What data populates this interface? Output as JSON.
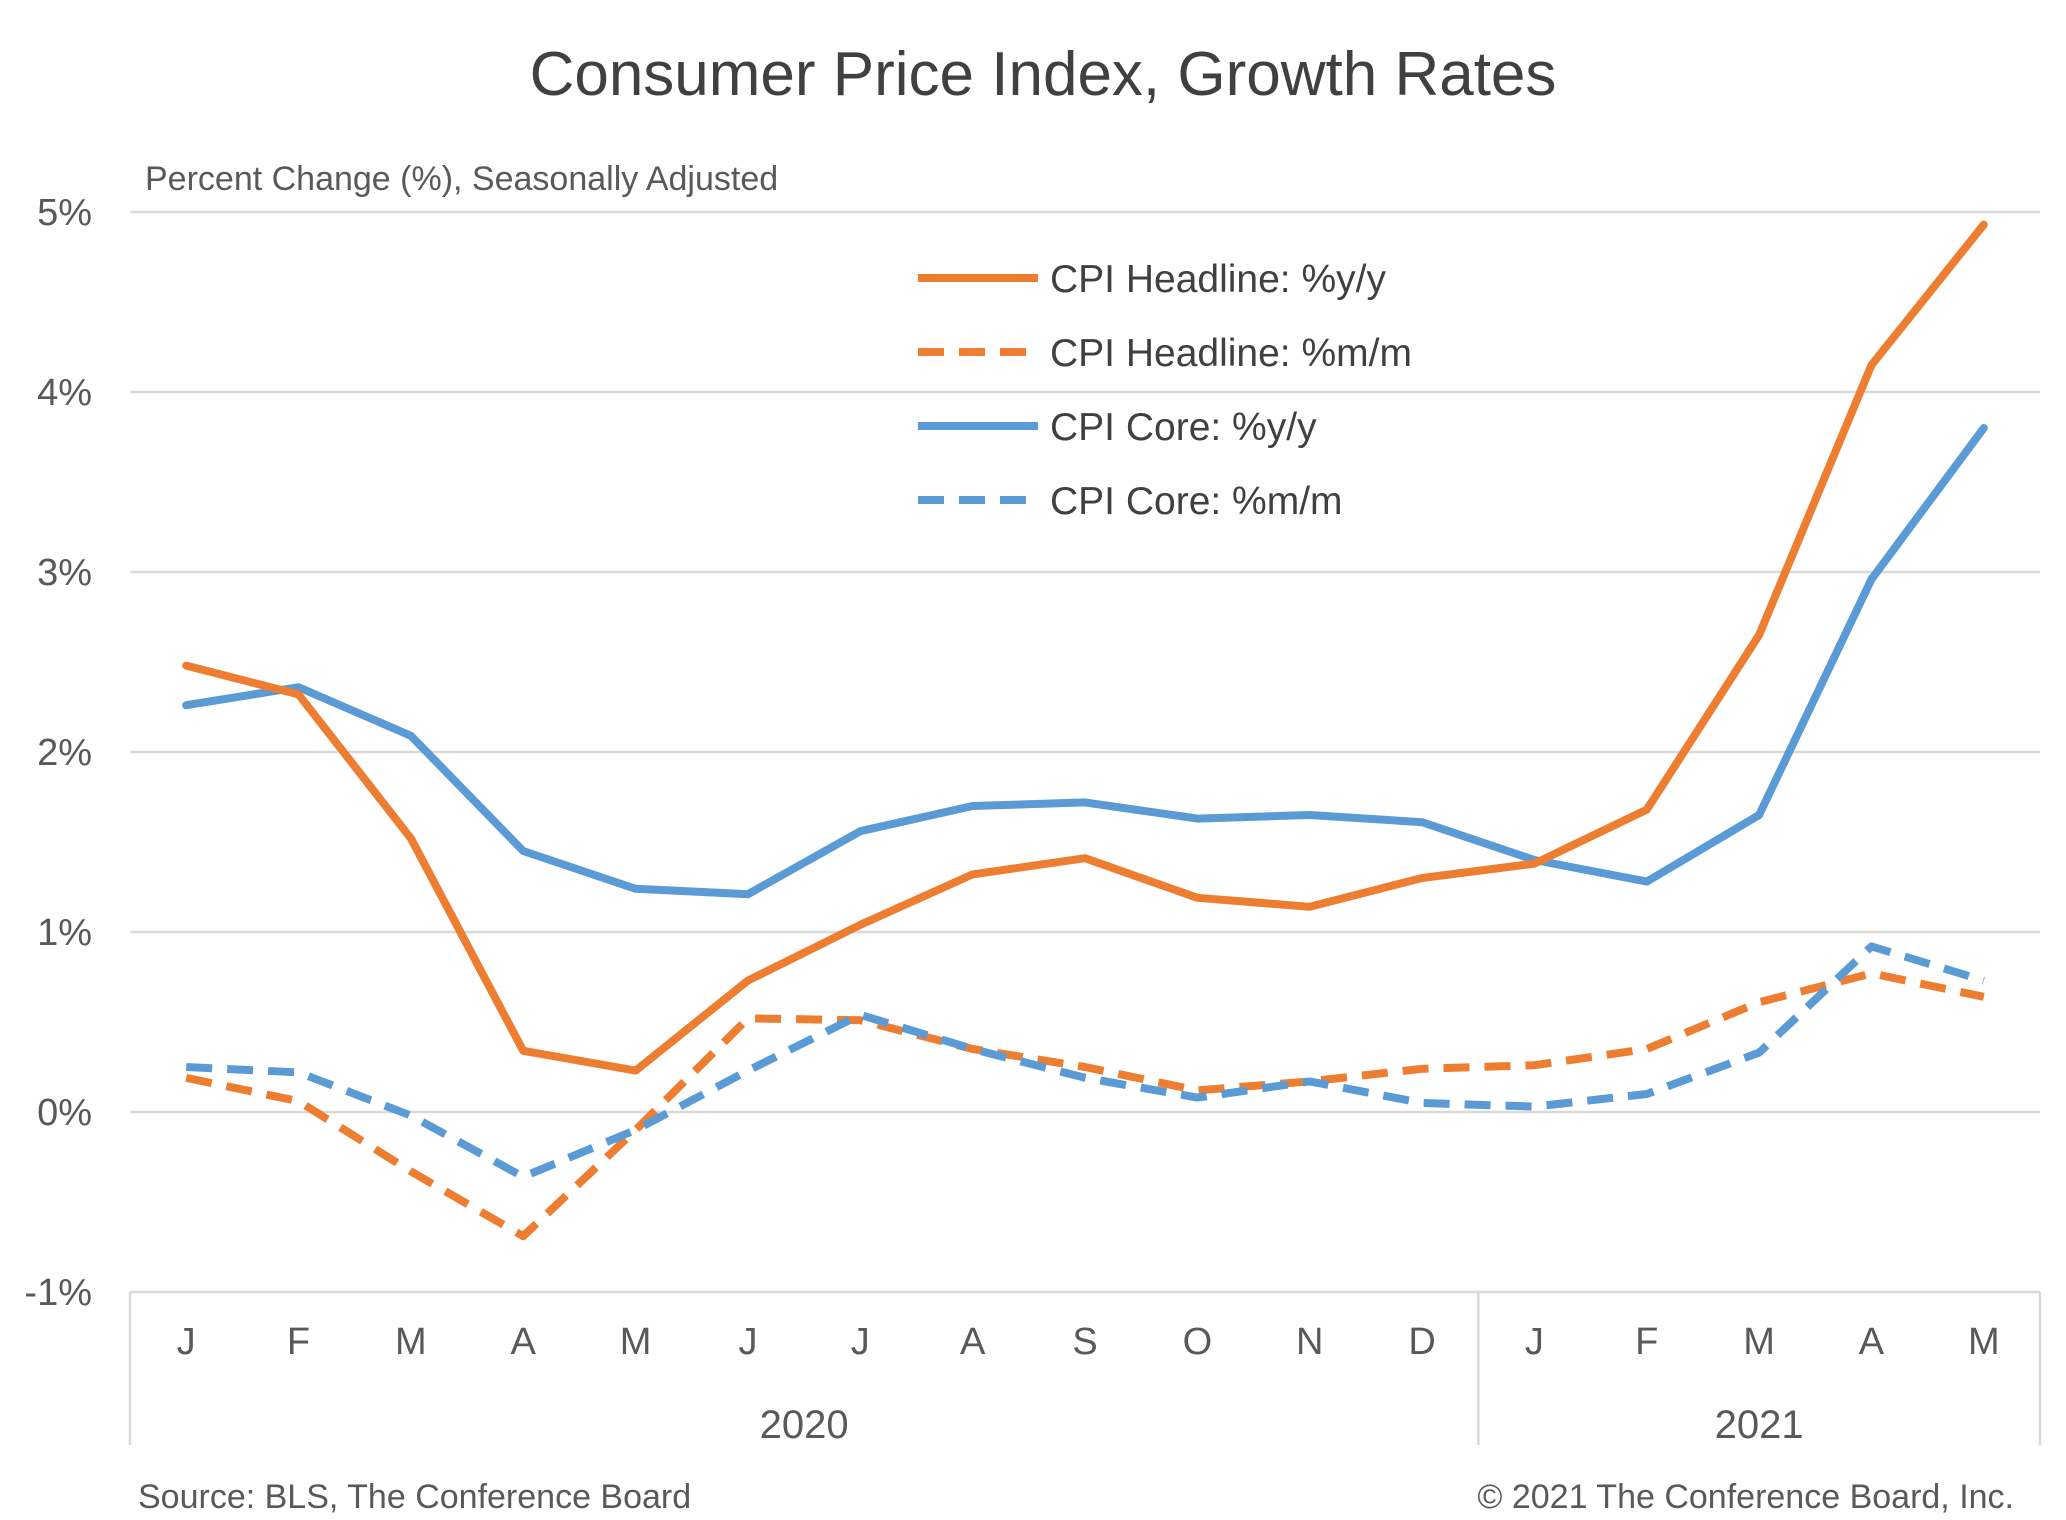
{
  "chart_data": {
    "type": "line",
    "title": "Consumer Price Index, Growth Rates",
    "subtitle": "Percent Change (%), Seasonally Adjusted",
    "categories": [
      "J",
      "F",
      "M",
      "A",
      "M",
      "J",
      "J",
      "A",
      "S",
      "O",
      "N",
      "D",
      "J",
      "F",
      "M",
      "A",
      "M"
    ],
    "year_groups": [
      {
        "label": "2020",
        "start": 0,
        "end": 11
      },
      {
        "label": "2021",
        "start": 12,
        "end": 16
      }
    ],
    "y_ticks": [
      {
        "value": 5,
        "label": "5%"
      },
      {
        "value": 4,
        "label": "4%"
      },
      {
        "value": 3,
        "label": "3%"
      },
      {
        "value": 2,
        "label": "2%"
      },
      {
        "value": 1,
        "label": "1%"
      },
      {
        "value": 0,
        "label": "0%"
      },
      {
        "value": -1,
        "label": "-1%"
      }
    ],
    "ylim": [
      -1,
      5
    ],
    "grid": true,
    "legend_position": "top-center",
    "series": [
      {
        "name": "CPI Headline:  %y/y",
        "color": "#ED7D31",
        "dash": false,
        "values": [
          2.48,
          2.32,
          1.52,
          0.34,
          0.23,
          0.73,
          1.04,
          1.32,
          1.41,
          1.19,
          1.14,
          1.3,
          1.38,
          1.68,
          2.65,
          4.15,
          4.93
        ]
      },
      {
        "name": "CPI Headline:  %m/m",
        "color": "#ED7D31",
        "dash": true,
        "values": [
          0.19,
          0.06,
          -0.33,
          -0.69,
          -0.1,
          0.52,
          0.51,
          0.35,
          0.25,
          0.12,
          0.17,
          0.24,
          0.26,
          0.35,
          0.61,
          0.77,
          0.64
        ]
      },
      {
        "name": "CPI Core:  %y/y",
        "color": "#5B9BD5",
        "dash": false,
        "values": [
          2.26,
          2.36,
          2.09,
          1.45,
          1.24,
          1.21,
          1.56,
          1.7,
          1.72,
          1.63,
          1.65,
          1.61,
          1.4,
          1.28,
          1.65,
          2.96,
          3.8
        ]
      },
      {
        "name": "CPI Core:  %m/m",
        "color": "#5B9BD5",
        "dash": true,
        "values": [
          0.25,
          0.22,
          -0.02,
          -0.36,
          -0.1,
          0.23,
          0.54,
          0.35,
          0.19,
          0.08,
          0.17,
          0.05,
          0.03,
          0.1,
          0.33,
          0.92,
          0.73
        ]
      }
    ],
    "source": "Source: BLS, The Conference Board",
    "copyright": "© 2021 The Conference Board, Inc."
  }
}
